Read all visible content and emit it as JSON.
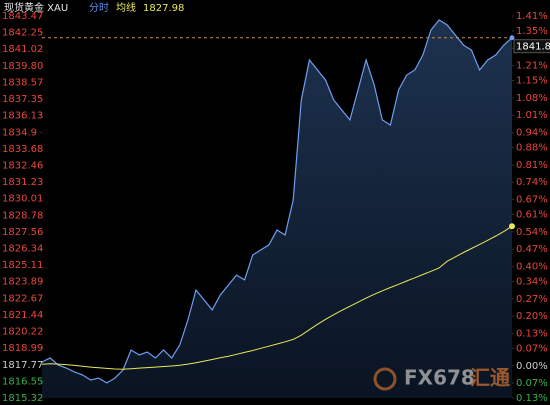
{
  "chart_data": {
    "type": "line",
    "title": "现货黄金 XAU",
    "series": [
      {
        "name": "分时",
        "color": "#6f9ef0",
        "values": [
          1817.97,
          1818.27,
          1817.75,
          1817.53,
          1817.24,
          1817.02,
          1816.65,
          1816.79,
          1816.43,
          1816.79,
          1817.38,
          1818.86,
          1818.49,
          1818.71,
          1818.27,
          1818.86,
          1818.27,
          1819.23,
          1821.07,
          1823.28,
          1822.54,
          1821.81,
          1822.91,
          1823.65,
          1824.38,
          1824.02,
          1825.86,
          1826.23,
          1826.6,
          1827.7,
          1827.33,
          1829.91,
          1837.28,
          1840.23,
          1839.49,
          1838.75,
          1837.28,
          1836.54,
          1835.81,
          1838.02,
          1840.23,
          1838.39,
          1835.81,
          1835.44,
          1838.02,
          1839.12,
          1839.49,
          1840.6,
          1842.44,
          1843.18,
          1842.81,
          1842.07,
          1841.33,
          1840.96,
          1839.49,
          1840.23,
          1840.6,
          1841.33,
          1841.87
        ]
      },
      {
        "name": "均线",
        "color": "#e8e85a",
        "values": [
          1817.8,
          1817.85,
          1817.82,
          1817.78,
          1817.72,
          1817.66,
          1817.6,
          1817.55,
          1817.5,
          1817.46,
          1817.44,
          1817.48,
          1817.52,
          1817.56,
          1817.6,
          1817.64,
          1817.68,
          1817.74,
          1817.82,
          1817.92,
          1818.04,
          1818.16,
          1818.28,
          1818.4,
          1818.54,
          1818.68,
          1818.82,
          1818.98,
          1819.14,
          1819.3,
          1819.46,
          1819.64,
          1819.95,
          1820.35,
          1820.75,
          1821.12,
          1821.46,
          1821.78,
          1822.08,
          1822.38,
          1822.68,
          1822.96,
          1823.22,
          1823.46,
          1823.7,
          1823.94,
          1824.18,
          1824.42,
          1824.66,
          1824.9,
          1825.4,
          1825.72,
          1826.04,
          1826.34,
          1826.64,
          1826.94,
          1827.26,
          1827.6,
          1827.98
        ]
      }
    ],
    "ylim": [
      1815.32,
      1843.47
    ],
    "yticks": [
      1843.47,
      1842.25,
      1841.02,
      {
        "value": 1839.8,
        "label": "1839.80"
      },
      1838.57,
      1837.35,
      1836.13,
      1834.9,
      1833.68,
      1832.46,
      1831.23,
      1830.01,
      1828.78,
      1827.56,
      1826.34,
      1825.11,
      1823.89,
      1822.67,
      1821.44,
      1820.22,
      1818.99,
      1817.77,
      1816.55,
      1815.32
    ],
    "y2lim": [
      -0.13,
      1.41
    ],
    "y2ticks": [
      {
        "value": 1.41,
        "label": "1.41%"
      },
      {
        "value": 1.35,
        "label": "1.35%"
      },
      {
        "value": 1.28,
        "label": "1.28%"
      },
      {
        "value": 1.21,
        "label": "1.21%"
      },
      {
        "value": 1.15,
        "label": "1.15%"
      },
      {
        "value": 1.08,
        "label": "1.08%"
      },
      {
        "value": 1.01,
        "label": "1.01%"
      },
      {
        "value": 0.94,
        "label": "0.94%"
      },
      {
        "value": 0.88,
        "label": "0.88%"
      },
      {
        "value": 0.81,
        "label": "0.81%"
      },
      {
        "value": 0.74,
        "label": "0.74%"
      },
      {
        "value": 0.67,
        "label": "0.67%"
      },
      {
        "value": 0.61,
        "label": "0.61%"
      },
      {
        "value": 0.54,
        "label": "0.54%"
      },
      {
        "value": 0.47,
        "label": "0.47%"
      },
      {
        "value": 0.4,
        "label": "0.40%"
      },
      {
        "value": 0.34,
        "label": "0.34%"
      },
      {
        "value": 0.27,
        "label": "0.27%"
      },
      {
        "value": 0.2,
        "label": "0.20%"
      },
      {
        "value": 0.13,
        "label": "0.13%"
      },
      {
        "value": 0.07,
        "label": "0.07%"
      },
      {
        "value": 0,
        "label": "0.00%"
      },
      {
        "value": -0.07,
        "label": "0.07%"
      },
      {
        "value": -0.13,
        "label": "0.13%"
      }
    ],
    "up_color": "#e8463a",
    "down_color": "#35b34a",
    "flat_color": "#cccccc",
    "watermark": [
      "FX678",
      "汇通"
    ]
  }
}
